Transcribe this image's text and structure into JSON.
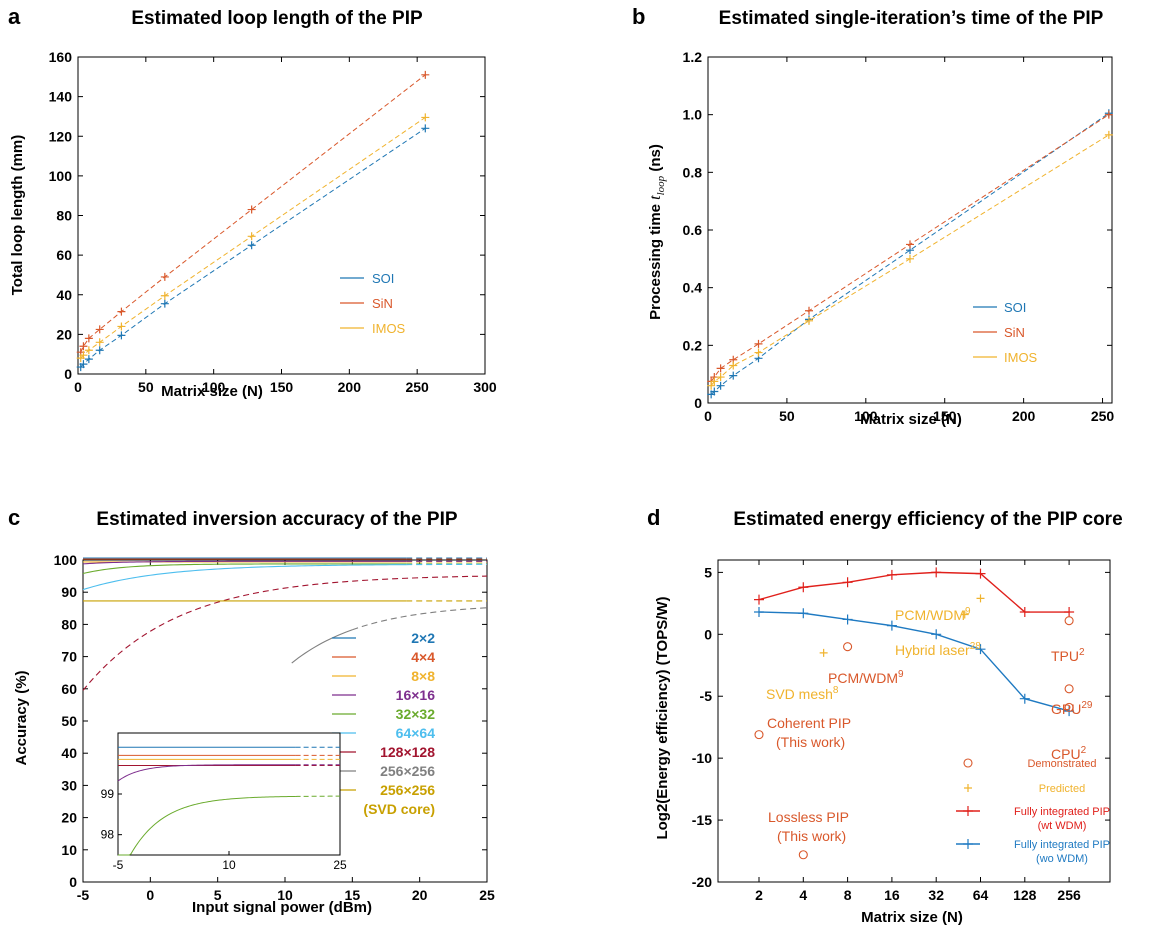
{
  "colors": {
    "soi": "#1f77b4",
    "sin": "#d9582b",
    "imos": "#f0b32e",
    "red": "#e0201b",
    "blue": "#1f7ac2",
    "demo": "#d9582b",
    "pred": "#f0b32e"
  },
  "chart_data": [
    {
      "id": "a",
      "panel_label": "a",
      "type": "line",
      "title": "Estimated loop length of the PIP",
      "xlabel": "Matrix size (N)",
      "ylabel": "Total loop length (mm)",
      "xlim": [
        0,
        300
      ],
      "ylim": [
        0,
        160
      ],
      "xticks": [
        "0",
        "50",
        "100",
        "150",
        "200",
        "250",
        "300"
      ],
      "yticks": [
        "0",
        "20",
        "40",
        "60",
        "80",
        "100",
        "120",
        "140",
        "160"
      ],
      "legend_position": "right",
      "x": [
        2,
        4,
        8,
        16,
        32,
        64,
        128,
        256
      ],
      "series": [
        {
          "name": "SOI",
          "color": "#1f77b4",
          "values": [
            3.5,
            5,
            7.5,
            12,
            19.5,
            35.5,
            65,
            124
          ]
        },
        {
          "name": "SiN",
          "color": "#d9582b",
          "values": [
            11,
            14,
            18,
            22.5,
            31.5,
            49,
            83,
            151
          ]
        },
        {
          "name": "IMOS",
          "color": "#f0b32e",
          "values": [
            8,
            9.5,
            12,
            16,
            24,
            39.5,
            69.5,
            129.5
          ]
        }
      ]
    },
    {
      "id": "b",
      "panel_label": "b",
      "type": "line",
      "title": "Estimated single-iteration’s time of the PIP",
      "xlabel": "Matrix size (N)",
      "ylabel_text": "Processing time ",
      "ylabel_var": "t",
      "ylabel_sub": "loop",
      "ylabel_unit": " (ns)",
      "xlim": [
        0,
        256
      ],
      "ylim": [
        0,
        1.2
      ],
      "xticks": [
        "0",
        "50",
        "100",
        "150",
        "200",
        "250"
      ],
      "yticks": [
        "0",
        "0.2",
        "0.4",
        "0.6",
        "0.8",
        "1.0",
        "1.2"
      ],
      "legend_position": "right",
      "x": [
        2,
        4,
        8,
        16,
        32,
        64,
        128,
        254
      ],
      "series": [
        {
          "name": "SOI",
          "color": "#1f77b4",
          "values": [
            0.03,
            0.04,
            0.06,
            0.095,
            0.155,
            0.29,
            0.53,
            1.005
          ]
        },
        {
          "name": "SiN",
          "color": "#d9582b",
          "values": [
            0.075,
            0.09,
            0.12,
            0.15,
            0.205,
            0.32,
            0.55,
            1.0
          ]
        },
        {
          "name": "IMOS",
          "color": "#f0b32e",
          "values": [
            0.06,
            0.075,
            0.09,
            0.13,
            0.175,
            0.285,
            0.5,
            0.93
          ]
        }
      ]
    },
    {
      "id": "c",
      "panel_label": "c",
      "type": "line",
      "title": "Estimated inversion accuracy of the PIP",
      "xlabel": "Input signal power (dBm)",
      "ylabel": "Accuracy (%)",
      "xlim": [
        -5,
        25
      ],
      "ylim": [
        0,
        100
      ],
      "xticks": [
        "-5",
        "0",
        "5",
        "10",
        "15",
        "20",
        "25"
      ],
      "yticks": [
        "0",
        "10",
        "20",
        "30",
        "40",
        "50",
        "60",
        "70",
        "80",
        "90",
        "100"
      ],
      "legend_position": "right",
      "series": [
        {
          "name": "2×2",
          "color": "#1f77b4",
          "label": "2×2",
          "label_color": "#1f77b4"
        },
        {
          "name": "4×4",
          "color": "#d9582b",
          "label": "4×4",
          "label_color": "#d9582b"
        },
        {
          "name": "8×8",
          "color": "#f0b32e",
          "label": "8×8",
          "label_color": "#f0b32e"
        },
        {
          "name": "16×16",
          "color": "#7e2f8e",
          "label": "16×16",
          "label_color": "#7e2f8e"
        },
        {
          "name": "32×32",
          "color": "#6aab2d",
          "label": "32×32",
          "label_color": "#6aab2d"
        },
        {
          "name": "64×64",
          "color": "#4dbeee",
          "label": "64×64",
          "label_color": "#4dbeee"
        },
        {
          "name": "128×128",
          "color": "#a2142f",
          "label": "128×128",
          "label_color": "#a2142f"
        },
        {
          "name": "256×256",
          "color": "#808080",
          "label": "256×256",
          "label_color": "#808080"
        },
        {
          "name": "256×256 (SVD core)",
          "color": "#c8a000",
          "label": "256×256",
          "label2": "(SVD core)",
          "label_color": "#c8a000"
        }
      ],
      "inset": {
        "xlim": [
          -5,
          25
        ],
        "ylim": [
          97.5,
          100.5
        ],
        "xticks": [
          "-5",
          "10",
          "25"
        ],
        "yticks": [
          "98",
          "99"
        ]
      }
    },
    {
      "id": "d",
      "panel_label": "d",
      "type": "line",
      "title": "Estimated energy efficiency of the PIP core",
      "xlabel": "Matrix size (N)",
      "ylabel": "Log2(Energy efficiency) (TOPS/W)",
      "ylim": [
        -20,
        6
      ],
      "xticks": [
        "2",
        "4",
        "8",
        "16",
        "32",
        "64",
        "128",
        "256"
      ],
      "yticks": [
        "5",
        "0",
        "-5",
        "-10",
        "-15",
        "-20"
      ],
      "x_scale": "log2",
      "legend_position": "bottom-right",
      "series": [
        {
          "name": "Fully integrated PIP (wt WDM)",
          "color": "#e0201b",
          "x": [
            2,
            4,
            8,
            16,
            32,
            64,
            128,
            256
          ],
          "values": [
            2.8,
            3.8,
            4.2,
            4.8,
            5.0,
            4.9,
            1.8,
            1.8
          ]
        },
        {
          "name": "Fully integrated PIP (wo WDM)",
          "color": "#1f7ac2",
          "x": [
            2,
            4,
            8,
            16,
            32,
            64,
            128,
            256
          ],
          "values": [
            1.8,
            1.7,
            1.2,
            0.7,
            0.0,
            -1.2,
            -5.2,
            -6.2
          ]
        }
      ],
      "demonstrated_points": [
        {
          "x": 2,
          "y": -8.1
        },
        {
          "x": 4,
          "y": -17.8
        },
        {
          "x": 8,
          "y": -1.0
        },
        {
          "x": 256,
          "y": 1.1
        },
        {
          "x": 256,
          "y": -4.4
        },
        {
          "x": 256,
          "y": -5.9
        }
      ],
      "predicted_points": [
        {
          "x": 5.5,
          "y": -1.5
        },
        {
          "x": 50,
          "y": 1.6
        },
        {
          "x": 64,
          "y": 2.9
        }
      ],
      "annotations": [
        {
          "id": "pcm-wdm-pred",
          "text": "PCM/WDM",
          "sup": "9",
          "color": "#f0b32e"
        },
        {
          "id": "hybrid-laser",
          "text": "Hybrid laser",
          "sup": "28",
          "color": "#f0b32e"
        },
        {
          "id": "tpu",
          "text": "TPU",
          "sup": "2",
          "color": "#d9582b"
        },
        {
          "id": "svd-mesh",
          "text": "SVD mesh",
          "sup": "8",
          "color": "#f0b32e"
        },
        {
          "id": "pcm-wdm-demo",
          "text": "PCM/WDM",
          "sup": "9",
          "color": "#d9582b"
        },
        {
          "id": "gpu",
          "text": "GPU",
          "sup": "29",
          "color": "#d9582b"
        },
        {
          "id": "cpu",
          "text": "CPU",
          "sup": "2",
          "color": "#d9582b"
        },
        {
          "id": "coherent-pip",
          "text": "Coherent PIP",
          "line2": "(This work)",
          "color": "#d9582b"
        },
        {
          "id": "lossless-pip",
          "text": "Lossless PIP",
          "line2": "(This work)",
          "color": "#d9582b"
        }
      ],
      "legend": [
        {
          "label": "Demonstrated",
          "color": "#d9582b",
          "marker": "circle"
        },
        {
          "label": "Predicted",
          "color": "#f0b32e",
          "marker": "plus"
        },
        {
          "label": "Fully integrated PIP",
          "label2": "(wt WDM)",
          "color": "#e0201b",
          "marker": "line-plus"
        },
        {
          "label": "Fully integrated PIP",
          "label2": "(wo WDM)",
          "color": "#1f7ac2",
          "marker": "line-plus"
        }
      ]
    }
  ]
}
